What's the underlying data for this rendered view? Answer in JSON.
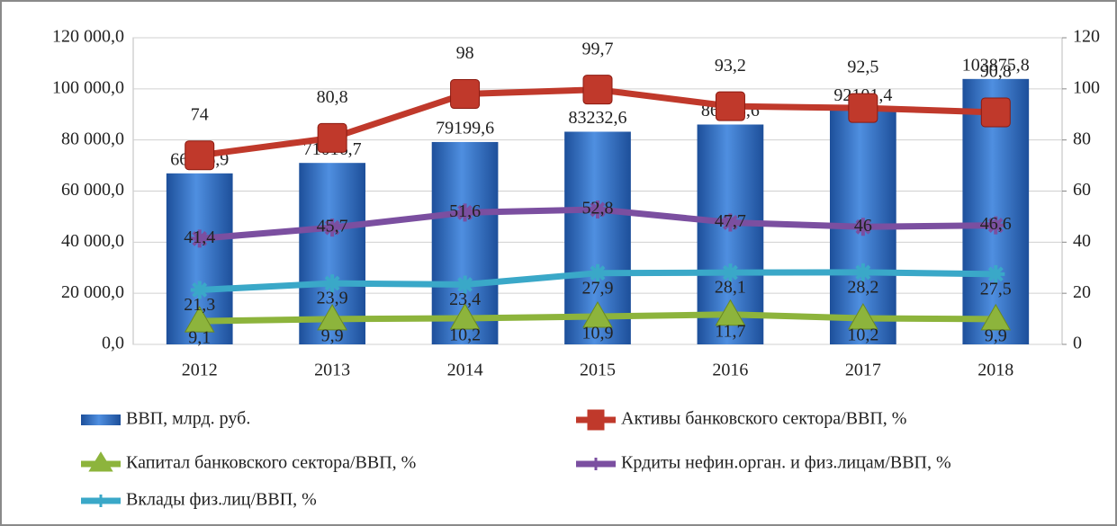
{
  "chart_data": {
    "type": "combo",
    "categories": [
      "2012",
      "2013",
      "2014",
      "2015",
      "2016",
      "2017",
      "2018"
    ],
    "ylim": [
      0,
      120000
    ],
    "yticks": [
      {
        "value": 0,
        "label": "0,0"
      },
      {
        "value": 20000,
        "label": "20 000,0"
      },
      {
        "value": 40000,
        "label": "40 000,0"
      },
      {
        "value": 60000,
        "label": "60 000,0"
      },
      {
        "value": 80000,
        "label": "80 000,0"
      },
      {
        "value": 100000,
        "label": "100 000,0"
      },
      {
        "value": 120000,
        "label": "120 000,0"
      }
    ],
    "y2lim": [
      0,
      120
    ],
    "y2ticks": [
      0,
      20,
      40,
      60,
      80,
      100,
      120
    ],
    "grid": true,
    "legend": "bottom",
    "series": [
      {
        "name": "ВВП, млрд. руб.",
        "type": "bar",
        "color": "#2f6fc4",
        "axis": "y",
        "values": [
          66926.9,
          71016.7,
          79199.6,
          83232.6,
          86043.6,
          92101.4,
          103875.8
        ],
        "value_labels": [
          "66926,9",
          "71016,7",
          "79199,6",
          "83232,6",
          "86043,6",
          "92101,4",
          "103875,8"
        ]
      },
      {
        "name": "Активы банковского сектора/ВВП, %",
        "type": "line",
        "color": "#c0392b",
        "marker": "square",
        "axis": "y2",
        "values": [
          74,
          80.8,
          98,
          99.7,
          93.2,
          92.5,
          90.8
        ],
        "value_labels": [
          "74",
          "80,8",
          "98",
          "99,7",
          "93,2",
          "92,5",
          "90,8"
        ]
      },
      {
        "name": "Капитал банковского сектора/ВВП, %",
        "type": "line",
        "color": "#8db43c",
        "marker": "triangle",
        "axis": "y2",
        "values": [
          9.1,
          9.9,
          10.2,
          10.9,
          11.7,
          10.2,
          9.9
        ],
        "value_labels": [
          "9,1",
          "9,9",
          "10,2",
          "10,9",
          "11,7",
          "10,2",
          "9,9"
        ]
      },
      {
        "name": "Крдиты нефин.орган. и физ.лицам/ВВП, %",
        "type": "line",
        "color": "#7b4fa0",
        "marker": "star",
        "axis": "y2",
        "values": [
          41.4,
          45.7,
          51.6,
          52.8,
          47.7,
          46,
          46.6
        ],
        "value_labels": [
          "41,4",
          "45,7",
          "51,6",
          "52,8",
          "47,7",
          "46",
          "46,6"
        ]
      },
      {
        "name": "Вклады физ.лиц/ВВП, %",
        "type": "line",
        "color": "#3aa8c8",
        "marker": "star",
        "axis": "y2",
        "values": [
          21.3,
          23.9,
          23.4,
          27.9,
          28.1,
          28.2,
          27.5
        ],
        "value_labels": [
          "21,3",
          "23,9",
          "23,4",
          "27,9",
          "28,1",
          "28,2",
          "27,5"
        ]
      }
    ]
  }
}
